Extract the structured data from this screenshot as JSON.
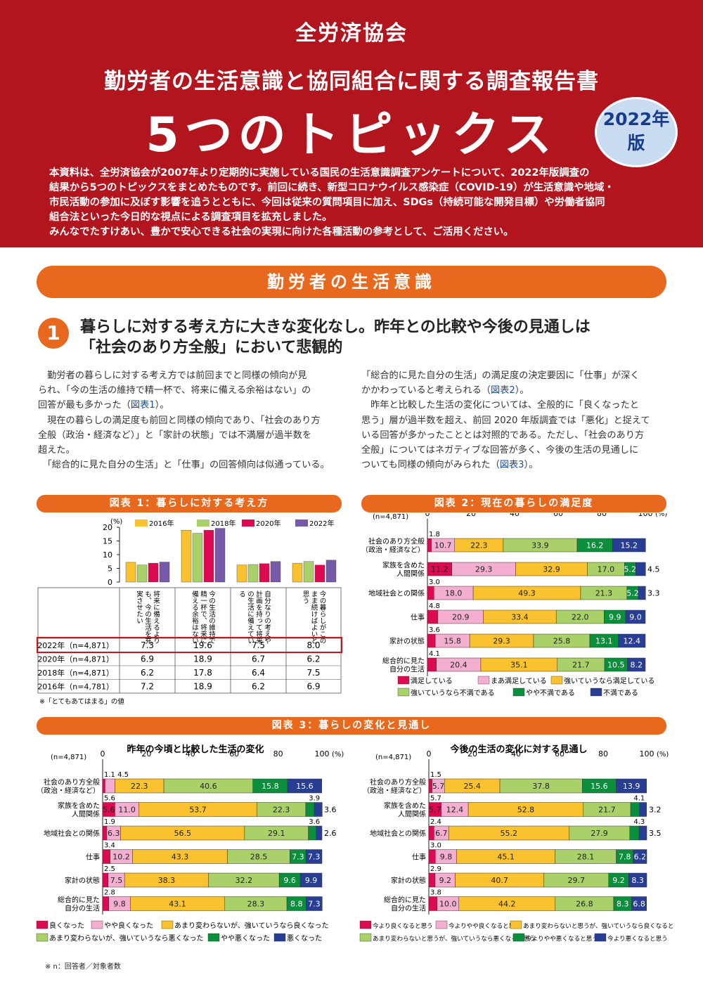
{
  "header": {
    "org": "全労済協会",
    "subtitle": "勤労者の生活意識と協同組合に関する調査報告書",
    "title": "5つのトピックス",
    "badge_line1": "2022年",
    "badge_line2": "版",
    "intro": [
      "本資料は、全労済協会が2007年より定期的に実施している国民の生活意識調査アンケートについて、2022年版調査の",
      "結果から5つのトピックスをまとめたものです。前回に続き、新型コロナウイルス感染症（COVID-19）が生活意識や地域・",
      "市民活動の参加に及ぼす影響を追うとともに、今回は従来の質問項目に加え、SDGs（持続可能な開発目標）や労働者協同",
      "組合法といった今日的な視点による調査項目を拡充しました。",
      "みんなでたすけあい、豊かで安心できる社会の実現に向けた各種活動の参考として、ご活用ください。"
    ]
  },
  "section": {
    "title": "勤労者の生活意識"
  },
  "topic1": {
    "number": "1",
    "heading_line1": "暮らしに対する考え方に大きな変化なし。昨年との比較や今後の見通しは",
    "heading_line2": "「社会のあり方全般」において悲観的"
  },
  "body": {
    "left": [
      {
        "t": "　勤労者の暮らしに対する考え方では前回までと同様の傾向が見"
      },
      {
        "t": "られ、「今の生活の維持で精一杯で、将来に備える余裕はない」の"
      },
      {
        "t": "回答が最も多かった（",
        "ref": "図表1",
        "after": "）。"
      },
      {
        "t": "　現在の暮らしの満足度も前回と同様の傾向であり、「社会のあり方"
      },
      {
        "t": "全般（政治・経済など）」と「家計の状態」では不満層が過半数を"
      },
      {
        "t": "超えた。"
      },
      {
        "t": "　「総合的に見た自分の生活」と「仕事」の回答傾向は似通っている。"
      }
    ],
    "right": [
      {
        "t": "「総合的に見た自分の生活」の満足度の決定要因に「仕事」が深く"
      },
      {
        "t": "かかわっていると考えられる（",
        "ref": "図表2",
        "after": "）。"
      },
      {
        "t": "　昨年と比較した生活の変化については、全般的に「良くなったと"
      },
      {
        "t": "思う」層が過半数を超え、前回 2020 年版調査では「悪化」と捉えて"
      },
      {
        "t": "いる回答が多かったこととは対照的である。ただし、「社会のあり方"
      },
      {
        "t": "全般」についてはネガティブな回答が多く、今後の生活の見通しに"
      },
      {
        "t": "ついても同様の傾向がみられた（",
        "ref": "図表3",
        "after": "）。"
      }
    ]
  },
  "fig1": {
    "title": "図表 1：暮らしに対する考え方",
    "unit": "(%)",
    "footnote": "※「とてもあてはまる」の値",
    "row_labels": [
      "2022年（n=4,871）",
      "2020年（n=4,871）",
      "2018年（n=4,871）",
      "2016年（n=4,781）"
    ],
    "table": [
      [
        "7.3",
        "19.6",
        "7.5",
        "8.0"
      ],
      [
        "6.9",
        "18.9",
        "6.7",
        "6.2"
      ],
      [
        "6.2",
        "17.8",
        "6.4",
        "7.5"
      ],
      [
        "7.2",
        "18.9",
        "6.2",
        "6.9"
      ]
    ],
    "col_labels": [
      "将来に備えるよりも、今の生活を充実させたい",
      "今の生活の維持で精一杯で、将来に備える余裕はない",
      "自分なりの考えや計画を持って将来の生活に備えている",
      "今の暮らしがこのまま続けばよいと思う"
    ]
  },
  "fig2": {
    "title": "図表 2：現在の暮らしの満足度",
    "n": "(n=4,871)",
    "pct": "(%)",
    "legend": [
      "満足している",
      "まあ満足している",
      "強いていうなら満足している",
      "強いていうなら不満である",
      "やや不満である",
      "不満である"
    ],
    "rows": [
      {
        "label": [
          "社会のあり方全般",
          "（政治・経済など）"
        ],
        "vals": [
          1.8,
          10.7,
          22.3,
          33.9,
          16.2,
          15.2
        ],
        "top": "1.8",
        "right": ""
      },
      {
        "label": [
          "家族を含めた",
          "人間関係"
        ],
        "vals": [
          11.2,
          29.3,
          32.9,
          17.0,
          5.2,
          4.5
        ],
        "top": "",
        "right": "4.5"
      },
      {
        "label": [
          "地域社会との関係"
        ],
        "vals": [
          3.0,
          18.0,
          49.3,
          21.3,
          5.2,
          3.3
        ],
        "top": "3.0",
        "right": "3.3"
      },
      {
        "label": [
          "仕事"
        ],
        "vals": [
          4.8,
          20.9,
          33.4,
          22.0,
          9.9,
          9.0
        ],
        "top": "4.8",
        "right": ""
      },
      {
        "label": [
          "家計の状態"
        ],
        "vals": [
          3.6,
          15.8,
          29.3,
          25.8,
          13.1,
          12.4
        ],
        "top": "3.6",
        "right": ""
      },
      {
        "label": [
          "総合的に見た",
          "自分の生活"
        ],
        "vals": [
          4.1,
          20.4,
          35.1,
          21.7,
          10.5,
          8.2
        ],
        "top": "4.1",
        "right": ""
      }
    ]
  },
  "fig3": {
    "title": "図表 3：暮らしの変化と見通し",
    "left": {
      "title": "昨年の今頃と比較した生活の変化",
      "n": "(n=4,871)",
      "pct": "(%)",
      "legend": [
        "良くなった",
        "やや良くなった",
        "あまり変わらないが、強いていうなら良くなった",
        "あまり変わらないが、強いていうなら悪くなった",
        "やや悪くなった",
        "悪くなった"
      ],
      "rows": [
        {
          "label": [
            "社会のあり方全般",
            "（政治・経済など）"
          ],
          "vals": [
            1.1,
            4.5,
            22.3,
            40.6,
            15.8,
            15.6
          ],
          "top": "1.1 4.5",
          "right": ""
        },
        {
          "label": [
            "家族を含めた",
            "人間関係"
          ],
          "vals": [
            5.6,
            11.0,
            53.7,
            22.3,
            3.9,
            3.6
          ],
          "top": "5.6",
          "top2": "3.9",
          "right": "3.6"
        },
        {
          "label": [
            "地域社会との関係"
          ],
          "vals": [
            1.9,
            6.3,
            56.5,
            29.1,
            3.6,
            2.6
          ],
          "top": "1.9",
          "top2": "3.6",
          "right": "2.6"
        },
        {
          "label": [
            "仕事"
          ],
          "vals": [
            3.4,
            10.2,
            43.3,
            28.5,
            7.3,
            7.3
          ],
          "top": "3.4",
          "right": ""
        },
        {
          "label": [
            "家計の状態"
          ],
          "vals": [
            2.5,
            7.5,
            38.3,
            32.2,
            9.6,
            9.9
          ],
          "top": "2.5",
          "right": ""
        },
        {
          "label": [
            "総合的に見た",
            "自分の生活"
          ],
          "vals": [
            2.8,
            9.8,
            43.1,
            28.3,
            8.8,
            7.3
          ],
          "top": "2.8",
          "right": ""
        }
      ]
    },
    "right": {
      "title": "今後の生活の変化に対する見通し",
      "n": "(n=4,871)",
      "pct": "(%)",
      "legend": [
        "今より良くなると思う",
        "今よりやや良くなると思う",
        "あまり変わらないと思うが、強いていうなら良くなると思う",
        "あまり変わらないと思うが、強いていうなら悪くなると思う",
        "今よりやや悪くなると思う",
        "今より悪くなると思う"
      ],
      "rows": [
        {
          "label": [
            "社会のあり方全般",
            "（政治・経済など）"
          ],
          "vals": [
            1.5,
            5.7,
            25.4,
            37.8,
            15.6,
            13.9
          ],
          "top": "1.5",
          "right": ""
        },
        {
          "label": [
            "家族を含めた",
            "人間関係"
          ],
          "vals": [
            5.7,
            12.4,
            52.8,
            21.7,
            4.1,
            3.2
          ],
          "top": "5.7",
          "top2": "4.1",
          "right": "3.2"
        },
        {
          "label": [
            "地域社会との関係"
          ],
          "vals": [
            2.4,
            6.7,
            55.2,
            27.9,
            4.3,
            3.5
          ],
          "top": "2.4",
          "top2": "4.3",
          "right": "3.5"
        },
        {
          "label": [
            "仕事"
          ],
          "vals": [
            3.0,
            9.8,
            45.1,
            28.1,
            7.8,
            6.2
          ],
          "top": "3.0",
          "right": ""
        },
        {
          "label": [
            "家計の状態"
          ],
          "vals": [
            2.9,
            9.2,
            40.7,
            29.7,
            9.2,
            8.3
          ],
          "top": "2.9",
          "right": ""
        },
        {
          "label": [
            "総合的に見た",
            "自分の生活"
          ],
          "vals": [
            3.8,
            10.0,
            44.2,
            26.8,
            8.3,
            6.8
          ],
          "top": "3.8",
          "right": ""
        }
      ]
    }
  },
  "footnote": "※ n：回答者／対象者数",
  "chart_data": [
    {
      "type": "bar",
      "title": "図表 1：暮らしに対する考え方",
      "ylabel": "(%)",
      "ylim": [
        0,
        20
      ],
      "categories": [
        "将来に備えるよりも、今の生活を充実させたい",
        "今の生活の維持で精一杯で、将来に備える余裕はない",
        "自分なりの考えや計画を持って将来の生活に備えている",
        "今の暮らしがこのまま続けばよいと思う"
      ],
      "series": [
        {
          "name": "2016年",
          "values": [
            7.2,
            18.9,
            6.2,
            6.9
          ]
        },
        {
          "name": "2018年",
          "values": [
            6.2,
            17.8,
            6.4,
            7.5
          ]
        },
        {
          "name": "2020年",
          "values": [
            6.9,
            18.9,
            6.7,
            6.2
          ]
        },
        {
          "name": "2022年",
          "values": [
            7.3,
            19.6,
            7.5,
            8.0
          ]
        }
      ],
      "yticks": [
        "0",
        "5",
        "10",
        "15",
        "20"
      ]
    },
    {
      "type": "bar",
      "stacked": true,
      "title": "図表 2：現在の暮らしの満足度",
      "xlim": [
        0,
        100
      ],
      "xticks": [
        "0",
        "20",
        "40",
        "60",
        "80",
        "100"
      ]
    },
    {
      "type": "bar",
      "stacked": true,
      "title": "昨年の今頃と比較した生活の変化",
      "xlim": [
        0,
        100
      ]
    },
    {
      "type": "bar",
      "stacked": true,
      "title": "今後の生活の変化に対する見通し",
      "xlim": [
        0,
        100
      ]
    }
  ],
  "colors": {
    "s1": "#dd0a52",
    "s2": "#f4afd0",
    "s3": "#f9c22e",
    "s4": "#aad169",
    "s5": "#0b8f3c",
    "s6": "#283d94",
    "y2016": "#f9c22e",
    "y2018": "#aad169",
    "y2020": "#dd0a52",
    "y2022": "#7659a8"
  }
}
